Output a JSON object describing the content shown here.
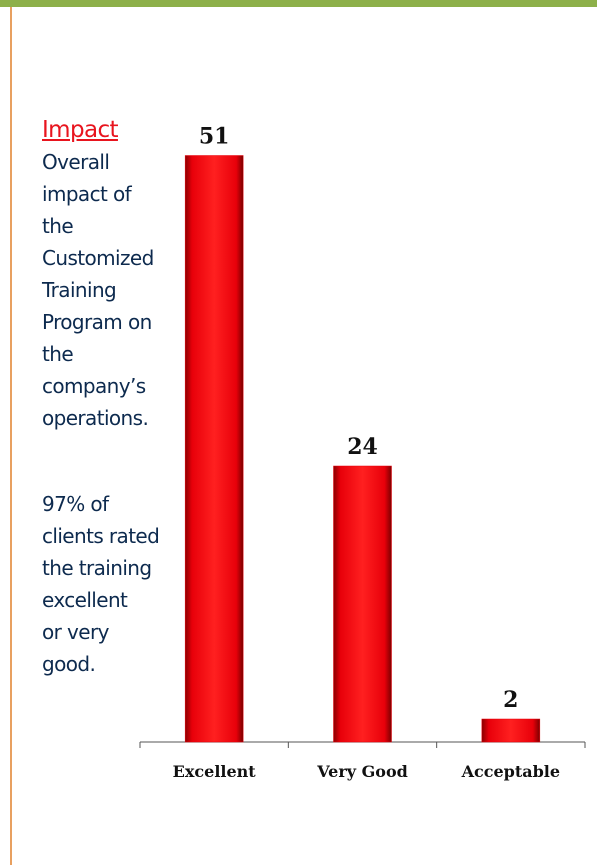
{
  "side_text": {
    "heading": "Impact",
    "paragraph1": [
      "Overall",
      "impact of",
      "the",
      "Customized",
      "Training",
      "Program on",
      "the",
      "company’s",
      "operations."
    ],
    "paragraph2": [
      "97% of",
      "clients rated",
      "the training",
      "excellent",
      "or very",
      "good."
    ]
  },
  "chart_data": {
    "type": "bar",
    "categories": [
      "Excellent",
      "Very Good",
      "Acceptable"
    ],
    "values": [
      51,
      24,
      2
    ],
    "color": "#e8000a",
    "ylim": [
      0,
      60
    ]
  }
}
